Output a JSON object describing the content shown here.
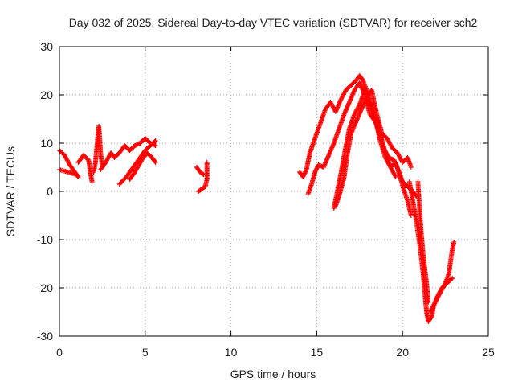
{
  "chart_data": {
    "type": "scatter",
    "title": "Day 032 of 2025, Sidereal Day-to-day VTEC variation (SDTVAR) for receiver sch2",
    "xlabel": "GPS time / hours",
    "ylabel": "SDTVAR / TECUs",
    "xlim": [
      0,
      25
    ],
    "ylim": [
      -30,
      30
    ],
    "xticks": [
      0,
      5,
      10,
      15,
      20,
      25
    ],
    "yticks": [
      -30,
      -20,
      -10,
      0,
      10,
      20,
      30
    ],
    "xtick_labels": [
      "0",
      "5",
      "10",
      "15",
      "20",
      "25"
    ],
    "ytick_labels": [
      "-30",
      "-20",
      "-10",
      "0",
      "10",
      "20",
      "30"
    ],
    "grid": true,
    "marker": "+",
    "series": [
      {
        "name": "SDTVAR",
        "color": "#ff0000",
        "segments": [
          [
            [
              0.0,
              8.5
            ],
            [
              0.3,
              7.5
            ],
            [
              0.6,
              5.5
            ],
            [
              0.9,
              4.0
            ],
            [
              1.1,
              3.0
            ]
          ],
          [
            [
              0.0,
              4.5
            ],
            [
              0.5,
              4.0
            ],
            [
              1.0,
              3.5
            ],
            [
              1.1,
              3.0
            ]
          ],
          [
            [
              1.1,
              6.0
            ],
            [
              1.4,
              7.5
            ],
            [
              1.7,
              6.5
            ],
            [
              1.8,
              4.0
            ],
            [
              1.9,
              2.0
            ]
          ],
          [
            [
              2.0,
              4.0
            ],
            [
              2.1,
              6.0
            ],
            [
              2.2,
              10.0
            ],
            [
              2.3,
              13.5
            ],
            [
              2.4,
              8.0
            ],
            [
              2.5,
              5.0
            ]
          ],
          [
            [
              2.4,
              4.5
            ],
            [
              2.7,
              6.0
            ],
            [
              3.0,
              8.0
            ],
            [
              3.2,
              7.0
            ],
            [
              3.5,
              8.0
            ],
            [
              3.8,
              9.5
            ],
            [
              4.1,
              8.5
            ],
            [
              4.4,
              9.5
            ],
            [
              4.7,
              10.0
            ],
            [
              5.0,
              11.0
            ],
            [
              5.3,
              10.0
            ],
            [
              5.6,
              9.5
            ]
          ],
          [
            [
              3.5,
              1.5
            ],
            [
              3.9,
              3.0
            ],
            [
              4.3,
              5.0
            ],
            [
              4.6,
              6.5
            ],
            [
              5.0,
              8.5
            ],
            [
              5.3,
              9.5
            ],
            [
              5.6,
              10.5
            ]
          ],
          [
            [
              4.1,
              2.5
            ],
            [
              4.4,
              4.0
            ],
            [
              4.8,
              6.5
            ],
            [
              5.1,
              8.0
            ],
            [
              5.4,
              7.0
            ],
            [
              5.6,
              6.0
            ]
          ],
          [
            [
              8.0,
              5.0
            ],
            [
              8.2,
              4.0
            ],
            [
              8.4,
              3.5
            ]
          ],
          [
            [
              8.1,
              0.0
            ],
            [
              8.3,
              0.5
            ],
            [
              8.5,
              1.0
            ],
            [
              8.6,
              2.5
            ],
            [
              8.6,
              6.0
            ]
          ],
          [
            [
              14.0,
              4.0
            ],
            [
              14.2,
              3.0
            ],
            [
              14.4,
              4.5
            ],
            [
              14.6,
              8.0
            ],
            [
              14.9,
              11.0
            ],
            [
              15.2,
              14.0
            ],
            [
              15.5,
              17.0
            ],
            [
              15.8,
              18.5
            ],
            [
              16.1,
              16.5
            ],
            [
              16.4,
              19.0
            ],
            [
              16.7,
              21.0
            ],
            [
              17.0,
              22.0
            ],
            [
              17.3,
              23.0
            ],
            [
              17.5,
              24.0
            ],
            [
              17.7,
              23.0
            ],
            [
              18.0,
              20.0
            ],
            [
              18.3,
              17.0
            ],
            [
              18.6,
              12.5
            ],
            [
              18.9,
              9.0
            ],
            [
              19.2,
              7.0
            ],
            [
              19.5,
              6.5
            ],
            [
              19.8,
              4.0
            ],
            [
              20.0,
              2.0
            ],
            [
              20.3,
              1.0
            ],
            [
              20.6,
              0.0
            ],
            [
              20.8,
              -1.0
            ]
          ],
          [
            [
              14.5,
              -0.5
            ],
            [
              14.7,
              1.5
            ],
            [
              14.9,
              4.0
            ],
            [
              15.1,
              5.5
            ],
            [
              15.4,
              5.0
            ],
            [
              15.7,
              7.5
            ],
            [
              16.0,
              10.0
            ],
            [
              16.3,
              13.0
            ],
            [
              16.6,
              16.0
            ],
            [
              16.9,
              18.5
            ],
            [
              17.2,
              21.0
            ],
            [
              17.5,
              22.5
            ],
            [
              17.8,
              20.0
            ],
            [
              18.1,
              16.0
            ],
            [
              18.4,
              14.5
            ],
            [
              18.7,
              12.0
            ],
            [
              19.0,
              8.0
            ],
            [
              19.3,
              5.0
            ],
            [
              19.6,
              3.0
            ]
          ],
          [
            [
              16.0,
              -3.5
            ],
            [
              16.2,
              0.0
            ],
            [
              16.4,
              3.5
            ],
            [
              16.6,
              7.5
            ],
            [
              16.9,
              13.0
            ],
            [
              17.2,
              16.0
            ],
            [
              17.5,
              18.0
            ],
            [
              17.8,
              21.0
            ],
            [
              18.1,
              18.0
            ],
            [
              18.4,
              15.0
            ],
            [
              18.7,
              10.5
            ],
            [
              19.0,
              7.0
            ],
            [
              19.3,
              5.0
            ],
            [
              19.6,
              6.0
            ],
            [
              19.9,
              2.5
            ],
            [
              20.1,
              0.0
            ],
            [
              20.3,
              -2.0
            ],
            [
              20.5,
              -5.0
            ]
          ],
          [
            [
              16.1,
              -3.0
            ],
            [
              16.3,
              -1.0
            ],
            [
              16.6,
              3.0
            ],
            [
              16.8,
              8.0
            ],
            [
              17.0,
              12.0
            ],
            [
              17.3,
              14.5
            ],
            [
              17.6,
              17.0
            ],
            [
              17.9,
              19.5
            ],
            [
              18.2,
              21.0
            ],
            [
              18.5,
              16.0
            ],
            [
              18.8,
              12.0
            ],
            [
              19.1,
              11.0
            ],
            [
              19.4,
              9.0
            ],
            [
              19.7,
              8.0
            ],
            [
              20.0,
              6.0
            ],
            [
              20.3,
              7.0
            ],
            [
              20.5,
              5.0
            ]
          ],
          [
            [
              20.4,
              2.0
            ],
            [
              20.6,
              -2.0
            ],
            [
              20.8,
              -6.0
            ],
            [
              21.0,
              -11.0
            ],
            [
              21.2,
              -17.0
            ],
            [
              21.3,
              -21.0
            ],
            [
              21.4,
              -25.0
            ],
            [
              21.5,
              -27.0
            ],
            [
              21.7,
              -26.0
            ],
            [
              21.8,
              -24.0
            ]
          ],
          [
            [
              20.9,
              2.0
            ],
            [
              21.0,
              -4.0
            ],
            [
              21.1,
              -9.0
            ],
            [
              21.2,
              -13.0
            ],
            [
              21.3,
              -16.0
            ],
            [
              21.4,
              -19.0
            ],
            [
              21.5,
              -23.0
            ]
          ],
          [
            [
              21.6,
              -25.0
            ],
            [
              21.9,
              -23.0
            ],
            [
              22.2,
              -21.0
            ],
            [
              22.5,
              -19.0
            ],
            [
              22.7,
              -17.0
            ],
            [
              22.9,
              -12.0
            ],
            [
              23.0,
              -10.5
            ]
          ],
          [
            [
              21.8,
              -24.0
            ],
            [
              22.0,
              -22.0
            ],
            [
              22.3,
              -20.0
            ],
            [
              22.6,
              -19.0
            ],
            [
              22.9,
              -18.0
            ]
          ]
        ]
      }
    ]
  }
}
